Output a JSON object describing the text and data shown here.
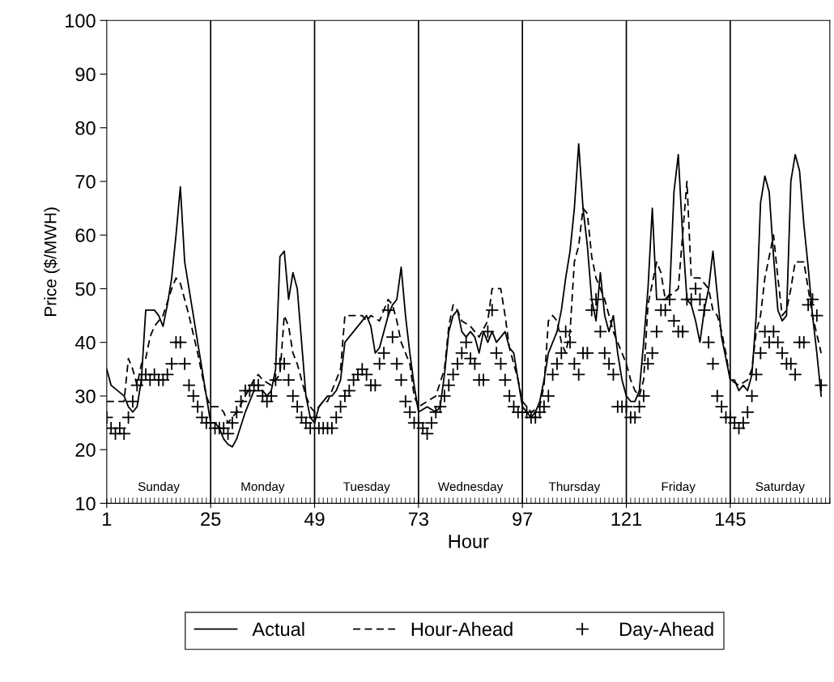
{
  "chart_data": {
    "type": "line",
    "xlabel": "Hour",
    "ylabel": "Price ($/MWH)",
    "xlim": [
      1,
      168
    ],
    "xticks": [
      1,
      25,
      49,
      73,
      97,
      121,
      145
    ],
    "ylim": [
      10,
      100
    ],
    "yticks": [
      10,
      20,
      30,
      40,
      50,
      60,
      70,
      80,
      90,
      100
    ],
    "grid": false,
    "legend": "bottom",
    "series": [
      {
        "name": "Actual",
        "line_style": "solid",
        "marker": "none",
        "color": "#000000",
        "x": [
          1,
          2,
          5,
          6,
          7,
          8,
          9,
          10,
          12,
          13,
          14,
          15,
          16,
          17,
          18,
          19,
          20,
          22,
          24,
          25,
          26,
          27,
          28,
          29,
          30,
          31,
          33,
          35,
          37,
          38,
          39,
          40,
          41,
          42,
          43,
          44,
          45,
          46,
          47,
          48,
          49,
          50,
          52,
          53,
          54,
          55,
          56,
          58,
          60,
          61,
          62,
          63,
          64,
          65,
          66,
          67,
          68,
          69,
          70,
          71,
          72,
          73,
          75,
          77,
          78,
          79,
          80,
          81,
          82,
          83,
          84,
          85,
          86,
          87,
          88,
          89,
          90,
          91,
          92,
          93,
          94,
          95,
          96,
          97,
          98,
          99,
          100,
          101,
          102,
          103,
          104,
          105,
          106,
          107,
          108,
          109,
          110,
          111,
          112,
          113,
          114,
          115,
          116,
          117,
          118,
          119,
          120,
          121,
          122,
          123,
          124,
          125,
          126,
          127,
          128,
          130,
          131,
          132,
          133,
          134,
          135,
          136,
          137,
          138,
          139,
          140,
          141,
          142,
          143,
          144,
          145,
          146,
          147,
          148,
          149,
          150,
          151,
          152,
          153,
          154,
          155,
          156,
          157,
          158,
          159,
          160,
          161,
          162,
          163,
          164,
          165,
          166
        ],
        "values": [
          35,
          32,
          30,
          28,
          27,
          28,
          33,
          46,
          46,
          45,
          43,
          47,
          52,
          60,
          69,
          55,
          50,
          40,
          30,
          25,
          25,
          24,
          22,
          21,
          20.5,
          22,
          27,
          31,
          31,
          30,
          31,
          35,
          56,
          57,
          48,
          53,
          50,
          40,
          30,
          26,
          25,
          28,
          30,
          30,
          31,
          33,
          40,
          42,
          44,
          45,
          43,
          38,
          39,
          42,
          45,
          47,
          48,
          54,
          45,
          38,
          32,
          27,
          28,
          27,
          28,
          34,
          42,
          45,
          46,
          42,
          41,
          42,
          41,
          38,
          42,
          40,
          42,
          40,
          41,
          42,
          39,
          38,
          33,
          28,
          27,
          26,
          27,
          29,
          33,
          38,
          40,
          42,
          46,
          52,
          57,
          65,
          77,
          65,
          58,
          48,
          44,
          53,
          45,
          42,
          45,
          38,
          33,
          30,
          29,
          29,
          31,
          40,
          50,
          65,
          48,
          48,
          49,
          68,
          75,
          60,
          48,
          47,
          44,
          40,
          46,
          50,
          57,
          49,
          41,
          37,
          33,
          33,
          31,
          32,
          31,
          34,
          45,
          66,
          71,
          68,
          56,
          46,
          44,
          45,
          70,
          75,
          72,
          62,
          54,
          45,
          38,
          30
        ]
      },
      {
        "name": "Hour-Ahead",
        "line_style": "dashed",
        "marker": "none",
        "color": "#000000",
        "x": [
          1,
          5,
          6,
          7,
          8,
          9,
          10,
          11,
          12,
          13,
          14,
          16,
          17,
          18,
          19,
          20,
          22,
          24,
          25,
          27,
          28,
          29,
          31,
          33,
          35,
          36,
          37,
          39,
          41,
          42,
          43,
          44,
          45,
          46,
          47,
          48,
          49,
          51,
          52,
          53,
          55,
          56,
          60,
          61,
          62,
          64,
          65,
          66,
          67,
          68,
          69,
          70,
          71,
          72,
          73,
          75,
          77,
          79,
          80,
          81,
          82,
          83,
          85,
          87,
          89,
          90,
          92,
          93,
          94,
          96,
          97,
          99,
          101,
          102,
          103,
          104,
          105,
          106,
          107,
          108,
          109,
          110,
          111,
          112,
          113,
          114,
          115,
          116,
          118,
          120,
          121,
          122,
          123,
          124,
          125,
          126,
          127,
          128,
          129,
          130,
          133,
          135,
          136,
          138,
          140,
          141,
          142,
          143,
          144,
          145,
          147,
          149,
          150,
          151,
          152,
          153,
          154,
          155,
          156,
          157,
          158,
          159,
          160,
          162,
          163,
          164,
          166
        ],
        "values": [
          29,
          29,
          37,
          35,
          32,
          36,
          37,
          41,
          43,
          44,
          45,
          50,
          52,
          51,
          48,
          45,
          38,
          30,
          28,
          28,
          27,
          25,
          27,
          30,
          33,
          34,
          33,
          32,
          34,
          45,
          43,
          38,
          36,
          33,
          30,
          28,
          27,
          29,
          29,
          31,
          35,
          45,
          45,
          44,
          45,
          44,
          46,
          48,
          47,
          44,
          40,
          38,
          36,
          30,
          28,
          29,
          30,
          35,
          43,
          47,
          46,
          44,
          43,
          41,
          44,
          50,
          50,
          45,
          39,
          33,
          29,
          27,
          28,
          32,
          44,
          45,
          44,
          40,
          38,
          42,
          55,
          58,
          65,
          64,
          56,
          52,
          50,
          48,
          42,
          38,
          36,
          33,
          31,
          30,
          33,
          47,
          51,
          55,
          53,
          48,
          50,
          70,
          52,
          52,
          50,
          46,
          45,
          42,
          38,
          33,
          32,
          33,
          35,
          42,
          45,
          52,
          56,
          60,
          52,
          45,
          46,
          50,
          55,
          55,
          50,
          45,
          38
        ]
      },
      {
        "name": "Day-Ahead",
        "type": "scatter",
        "marker": "cross",
        "color": "#000000",
        "x": [
          1,
          2,
          3,
          4,
          5,
          6,
          7,
          8,
          9,
          10,
          11,
          12,
          13,
          14,
          15,
          16,
          17,
          18,
          19,
          20,
          21,
          22,
          23,
          24,
          25,
          26,
          27,
          28,
          29,
          30,
          31,
          32,
          33,
          34,
          35,
          36,
          37,
          38,
          39,
          40,
          41,
          42,
          43,
          44,
          45,
          46,
          47,
          48,
          49,
          50,
          51,
          52,
          53,
          54,
          55,
          56,
          57,
          58,
          59,
          60,
          61,
          62,
          63,
          64,
          65,
          66,
          67,
          68,
          69,
          70,
          71,
          72,
          73,
          74,
          75,
          76,
          77,
          78,
          79,
          80,
          81,
          82,
          83,
          84,
          85,
          86,
          87,
          88,
          89,
          90,
          91,
          92,
          93,
          94,
          95,
          96,
          97,
          98,
          99,
          100,
          101,
          102,
          103,
          104,
          105,
          106,
          107,
          108,
          109,
          110,
          111,
          112,
          113,
          114,
          115,
          116,
          117,
          118,
          119,
          120,
          121,
          122,
          123,
          124,
          125,
          126,
          127,
          128,
          129,
          130,
          131,
          132,
          133,
          134,
          135,
          136,
          137,
          138,
          139,
          140,
          141,
          142,
          143,
          144,
          145,
          146,
          147,
          148,
          149,
          150,
          151,
          152,
          153,
          154,
          155,
          156,
          157,
          158,
          159,
          160,
          161,
          162,
          163,
          164,
          165,
          166
        ],
        "values": [
          26,
          24,
          23,
          24,
          23,
          26,
          29,
          32,
          33,
          34,
          33,
          34,
          33,
          33,
          34,
          36,
          40,
          40,
          36,
          32,
          30,
          28,
          26,
          25,
          25,
          24,
          24,
          24,
          23,
          25,
          27,
          29,
          31,
          31,
          32,
          32,
          30,
          29,
          30,
          33,
          36,
          36,
          33,
          30,
          28,
          26,
          25,
          24,
          26,
          24,
          24,
          24,
          24,
          26,
          28,
          30,
          31,
          33,
          34,
          35,
          34,
          32,
          32,
          36,
          38,
          46,
          41,
          36,
          33,
          29,
          27,
          25,
          25,
          24,
          23,
          25,
          27,
          28,
          30,
          32,
          34,
          36,
          38,
          40,
          37,
          36,
          33,
          33,
          42,
          46,
          38,
          36,
          33,
          30,
          28,
          27,
          27,
          27,
          26,
          26,
          27,
          28,
          30,
          34,
          36,
          38,
          42,
          40,
          36,
          34,
          38,
          38,
          46,
          48,
          42,
          38,
          36,
          34,
          28,
          28,
          28,
          26,
          26,
          28,
          30,
          36,
          38,
          42,
          46,
          46,
          48,
          44,
          42,
          42,
          48,
          48,
          50,
          48,
          46,
          40,
          36,
          30,
          28,
          26,
          26,
          25,
          24,
          25,
          27,
          30,
          34,
          38,
          42,
          40,
          42,
          40,
          38,
          36,
          36,
          34,
          40,
          40,
          47,
          48,
          45,
          32
        ]
      }
    ],
    "ref_lines": [
      {
        "axis": "x",
        "value": 25,
        "color": "#000000"
      },
      {
        "axis": "x",
        "value": 49,
        "color": "#000000"
      },
      {
        "axis": "x",
        "value": 73,
        "color": "#000000"
      },
      {
        "axis": "x",
        "value": 97,
        "color": "#000000"
      },
      {
        "axis": "x",
        "value": 121,
        "color": "#000000"
      },
      {
        "axis": "x",
        "value": 145,
        "color": "#000000"
      }
    ],
    "annotations": [
      "Sunday",
      "Monday",
      "Tuesday",
      "Wednesday",
      "Thursday",
      "Friday",
      "Saturday"
    ]
  }
}
